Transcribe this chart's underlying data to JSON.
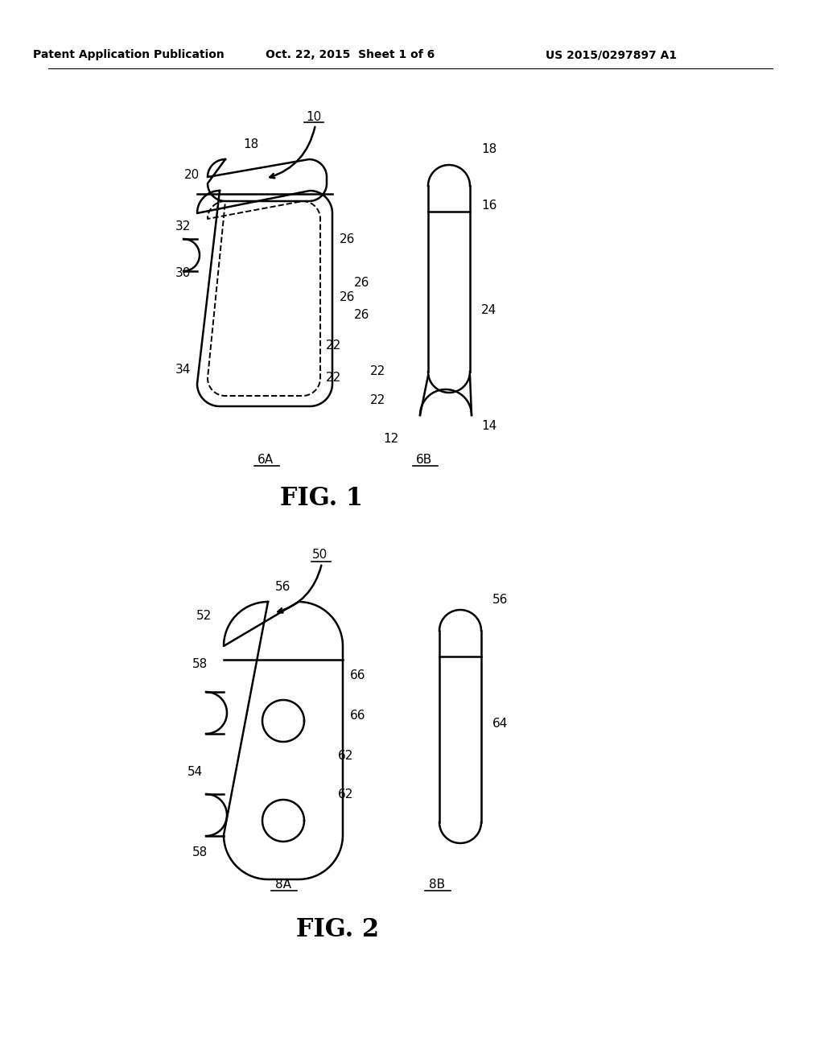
{
  "background_color": "#ffffff",
  "header_left": "Patent Application Publication",
  "header_mid": "Oct. 22, 2015  Sheet 1 of 6",
  "header_right": "US 2015/0297897 A1"
}
